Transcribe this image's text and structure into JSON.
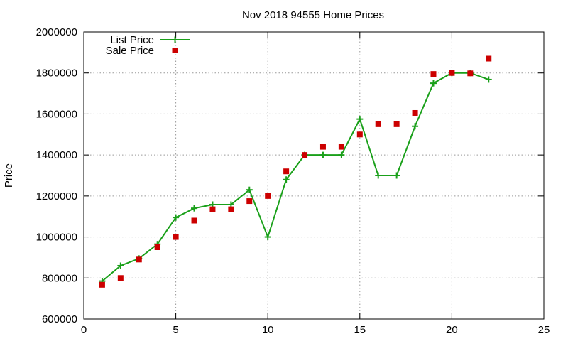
{
  "chart_data": {
    "type": "line",
    "title": "Nov 2018 94555 Home Prices",
    "ylabel": "Price",
    "xlabel": "",
    "xlim": [
      0,
      25
    ],
    "ylim": [
      600000,
      2000000
    ],
    "x_ticks": [
      "0",
      "5",
      "10",
      "15",
      "20",
      "25"
    ],
    "y_ticks": [
      "600000",
      "800000",
      "1000000",
      "1200000",
      "1400000",
      "1600000",
      "1800000",
      "2000000"
    ],
    "grid": true,
    "legend_position": "top-left",
    "series": [
      {
        "name": "List Price",
        "kind": "line-cross",
        "color": "#1aa01a",
        "x": [
          1,
          2,
          3,
          4,
          5,
          6,
          7,
          8,
          9,
          10,
          11,
          12,
          13,
          14,
          15,
          16,
          17,
          18,
          19,
          20,
          21,
          22
        ],
        "values": [
          785000,
          860000,
          895000,
          965000,
          1095000,
          1140000,
          1158000,
          1158000,
          1230000,
          1000000,
          1280000,
          1400000,
          1400000,
          1400000,
          1575000,
          1300000,
          1300000,
          1540000,
          1750000,
          1800000,
          1800000,
          1768000
        ]
      },
      {
        "name": "Sale Price",
        "kind": "square",
        "color": "#cc0000",
        "x": [
          1,
          2,
          3,
          4,
          5,
          6,
          7,
          8,
          9,
          10,
          11,
          12,
          13,
          14,
          15,
          16,
          17,
          18,
          19,
          20,
          21,
          22
        ],
        "values": [
          767000,
          800000,
          890000,
          950000,
          1000000,
          1080000,
          1135000,
          1135000,
          1175000,
          1200000,
          1320000,
          1400000,
          1440000,
          1440000,
          1500000,
          1550000,
          1550000,
          1605000,
          1795000,
          1800000,
          1798000,
          1870000
        ]
      }
    ]
  }
}
